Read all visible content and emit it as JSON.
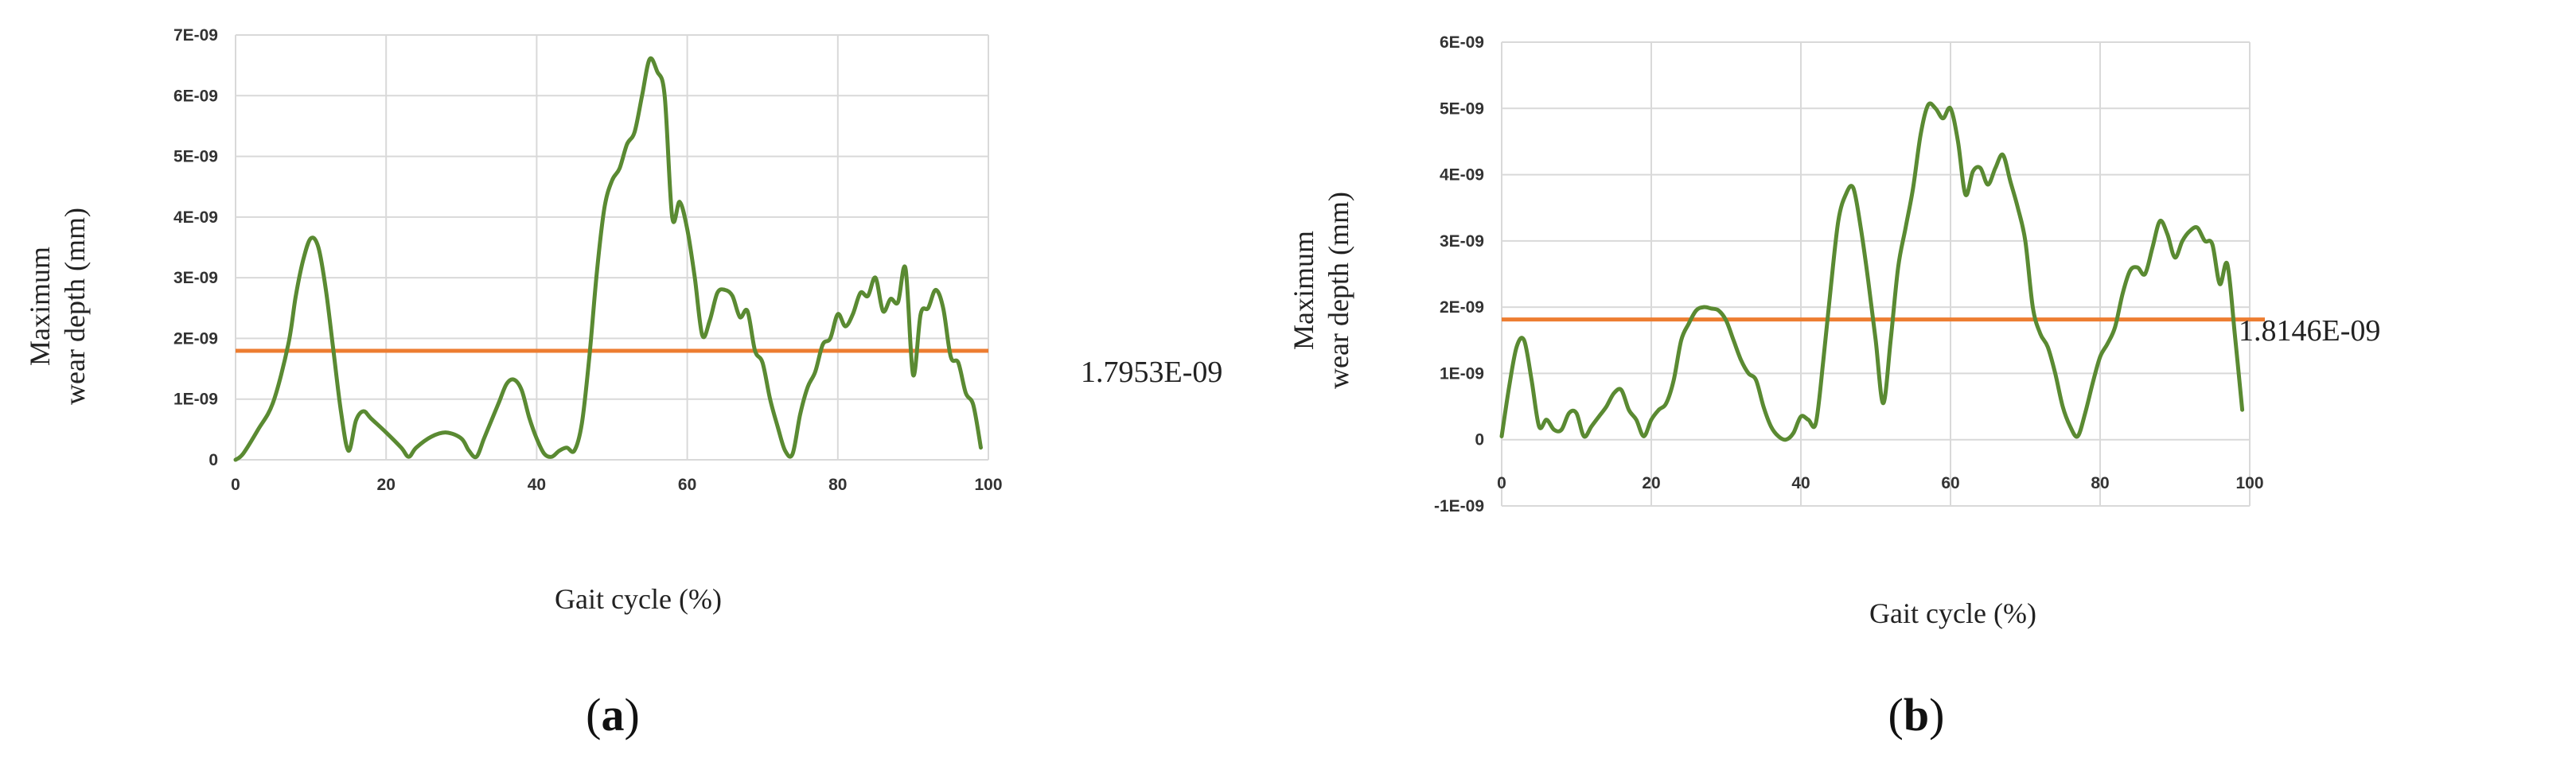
{
  "chart_data": [
    {
      "type": "line",
      "panel_label": "a",
      "xlabel": "Gait cycle (%)",
      "ylabel_lines": [
        "Maximum",
        "wear depth (mm)"
      ],
      "x_ticks": [
        "0",
        "20",
        "40",
        "60",
        "80",
        "100"
      ],
      "y_ticks": [
        "0",
        "1E-09",
        "2E-09",
        "3E-09",
        "4E-09",
        "5E-09",
        "6E-09",
        "7E-09"
      ],
      "xlim": [
        0,
        100
      ],
      "ylim": [
        0,
        7e-09
      ],
      "grid": true,
      "reference_line": {
        "value": 1.7953e-09,
        "label": "1.7953E-09",
        "color": "#ed7d31"
      },
      "series_color": "#5a8a32",
      "series": [
        {
          "x": [
            0,
            1,
            3,
            5,
            7,
            8,
            9,
            10,
            11,
            12,
            13,
            14,
            15,
            16,
            17,
            18,
            20,
            22,
            23,
            24,
            26,
            28,
            30,
            31,
            32,
            33,
            34,
            35,
            36,
            37,
            38,
            39,
            40,
            41,
            42,
            43,
            44,
            45,
            46,
            47,
            48,
            49,
            50,
            51,
            52,
            53,
            54,
            55,
            56,
            57,
            58,
            59,
            60,
            61,
            62,
            63,
            64,
            65,
            66,
            67,
            68,
            69,
            70,
            71,
            72,
            73,
            74,
            75,
            76,
            77,
            78,
            79,
            80,
            81,
            82,
            83,
            84,
            85,
            86,
            87,
            88,
            89,
            90,
            91,
            92,
            93,
            94,
            95,
            96,
            97,
            98,
            99
          ],
          "y": [
            0,
            1e-10,
            5e-10,
            9.5e-10,
            1.9e-09,
            2.7e-09,
            3.3e-09,
            3.65e-09,
            3.5e-09,
            2.8e-09,
            1.8e-09,
            8e-10,
            1.5e-10,
            6.5e-10,
            8e-10,
            6.8e-10,
            4.5e-10,
            2e-10,
            5e-11,
            2e-10,
            3.8e-10,
            4.5e-10,
            3.5e-10,
            1.5e-10,
            5e-11,
            3.5e-10,
            6.5e-10,
            9.5e-10,
            1.25e-09,
            1.32e-09,
            1.15e-09,
            7e-10,
            3.5e-10,
            1e-10,
            5e-11,
            1.5e-10,
            2e-10,
            1.5e-10,
            6e-10,
            1.7e-09,
            3.1e-09,
            4.15e-09,
            4.6e-09,
            4.8e-09,
            5.2e-09,
            5.4e-09,
            6e-09,
            6.6e-09,
            6.4e-09,
            6e-09,
            4e-09,
            4.25e-09,
            3.8e-09,
            3e-09,
            2.05e-09,
            2.3e-09,
            2.75e-09,
            2.8e-09,
            2.7e-09,
            2.35e-09,
            2.45e-09,
            1.8e-09,
            1.6e-09,
            1e-09,
            5.5e-10,
            1.5e-10,
            1e-10,
            7.5e-10,
            1.2e-09,
            1.45e-09,
            1.9e-09,
            2e-09,
            2.4e-09,
            2.2e-09,
            2.4e-09,
            2.75e-09,
            2.7e-09,
            3e-09,
            2.45e-09,
            2.65e-09,
            2.6e-09,
            3.15e-09,
            1.4e-09,
            2.4e-09,
            2.5e-09,
            2.8e-09,
            2.5e-09,
            1.7e-09,
            1.6e-09,
            1.1e-09,
            9e-10,
            2e-10
          ]
        }
      ]
    },
    {
      "type": "line",
      "panel_label": "b",
      "xlabel": "Gait cycle (%)",
      "ylabel_lines": [
        "Maximum",
        "wear depth (mm)"
      ],
      "x_ticks": [
        "0",
        "20",
        "40",
        "60",
        "80",
        "100"
      ],
      "y_ticks": [
        "-1E-09",
        "0",
        "1E-09",
        "2E-09",
        "3E-09",
        "4E-09",
        "5E-09",
        "6E-09"
      ],
      "xlim": [
        0,
        100
      ],
      "ylim": [
        -1e-09,
        6e-09
      ],
      "grid": true,
      "reference_line": {
        "value": 1.8146e-09,
        "label": "1.8146E-09",
        "color": "#ed7d31"
      },
      "series_color": "#5a8a32",
      "series": [
        {
          "x": [
            0,
            1,
            2,
            3,
            4,
            5,
            6,
            7,
            8,
            9,
            10,
            11,
            12,
            13,
            14,
            15,
            16,
            17,
            18,
            19,
            20,
            21,
            22,
            23,
            24,
            25,
            26,
            27,
            28,
            29,
            30,
            31,
            32,
            33,
            34,
            35,
            36,
            37,
            38,
            39,
            40,
            41,
            42,
            43,
            44,
            45,
            46,
            47,
            48,
            49,
            50,
            51,
            52,
            53,
            54,
            55,
            56,
            57,
            58,
            59,
            60,
            61,
            62,
            63,
            64,
            65,
            66,
            67,
            68,
            69,
            70,
            71,
            72,
            73,
            74,
            75,
            76,
            77,
            78,
            79,
            80,
            81,
            82,
            83,
            84,
            85,
            86,
            87,
            88,
            89,
            90,
            91,
            92,
            93,
            94,
            95,
            96,
            97,
            98,
            99
          ],
          "y": [
            5e-11,
            8e-10,
            1.4e-09,
            1.5e-09,
            9e-10,
            2e-10,
            3e-10,
            1.5e-10,
            1.5e-10,
            4e-10,
            4e-10,
            5e-11,
            2e-10,
            3.5e-10,
            5e-10,
            7e-10,
            7.5e-10,
            4.5e-10,
            3e-10,
            5e-11,
            3e-10,
            4.5e-10,
            5.5e-10,
            9e-10,
            1.5e-09,
            1.75e-09,
            1.95e-09,
            2e-09,
            1.98e-09,
            1.95e-09,
            1.8e-09,
            1.5e-09,
            1.2e-09,
            1e-09,
            9e-10,
            5e-10,
            2e-10,
            5e-11,
            0.0,
            1e-10,
            3.5e-10,
            3e-10,
            2.5e-10,
            1.2e-09,
            2.3e-09,
            3.3e-09,
            3.7e-09,
            3.8e-09,
            3.2e-09,
            2.4e-09,
            1.5e-09,
            5.5e-10,
            1.5e-09,
            2.6e-09,
            3.2e-09,
            3.8e-09,
            4.6e-09,
            5.05e-09,
            5e-09,
            4.85e-09,
            5e-09,
            4.5e-09,
            3.7e-09,
            4.05e-09,
            4.1e-09,
            3.85e-09,
            4.1e-09,
            4.3e-09,
            3.9e-09,
            3.5e-09,
            3e-09,
            2e-09,
            1.6e-09,
            1.4e-09,
            1e-09,
            5e-10,
            2e-10,
            5e-11,
            4e-10,
            8.5e-10,
            1.25e-09,
            1.45e-09,
            1.7e-09,
            2.2e-09,
            2.55e-09,
            2.6e-09,
            2.5e-09,
            2.9e-09,
            3.3e-09,
            3.1e-09,
            2.75e-09,
            3e-09,
            3.15e-09,
            3.2e-09,
            3e-09,
            2.95e-09,
            2.35e-09,
            2.65e-09,
            1.6e-09,
            4.5e-10
          ]
        }
      ]
    }
  ],
  "captions": [
    {
      "open": "(",
      "letter": "a",
      "close": ")"
    },
    {
      "open": "(",
      "letter": "b",
      "close": ")"
    }
  ]
}
